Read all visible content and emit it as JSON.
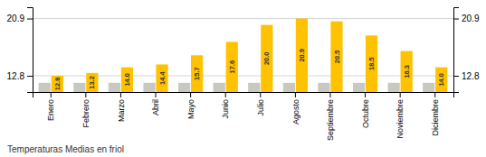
{
  "chart_data": {
    "type": "bar",
    "title": "Temperaturas Medias en friol",
    "categories": [
      "Enero",
      "Febrero",
      "Marzo",
      "Abril",
      "Mayo",
      "Junio",
      "Julio",
      "Agosto",
      "Septiembre",
      "Octubre",
      "Noviembre",
      "Diciembre"
    ],
    "series": [
      {
        "color": "#C8C8C0",
        "values": [
          11.8,
          11.8,
          11.8,
          11.8,
          11.8,
          11.8,
          11.8,
          11.8,
          11.8,
          11.8,
          11.8,
          11.8
        ]
      },
      {
        "color": "#FFC200",
        "data_labels": true,
        "values": [
          12.8,
          13.2,
          14.0,
          14.4,
          15.7,
          17.6,
          20.0,
          20.9,
          20.5,
          18.5,
          16.3,
          14.0
        ],
        "value_labels": [
          "12.8",
          "13.2",
          "14.0",
          "14.4",
          "15.7",
          "17.6",
          "20.0",
          "20.9",
          "20.5",
          "18.5",
          "16.3",
          "14.0"
        ]
      }
    ],
    "ylim": [
      10.5,
      22.5
    ],
    "yticks": [
      12.8,
      20.9
    ],
    "grid": true
  }
}
